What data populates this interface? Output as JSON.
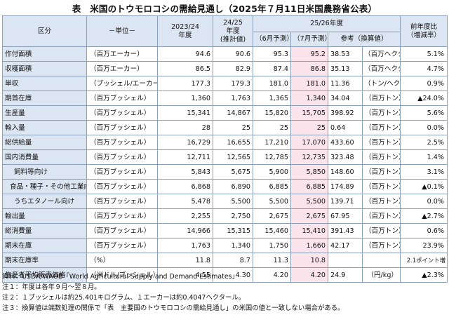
{
  "title": "表　米国のトウモロコシの需給見通し（2025年７月11日米国農務省公表）",
  "header": {
    "category": "区分",
    "unit": "－単位－",
    "col_2324_line1": "2023/24",
    "col_2324_line2": "年度",
    "col_2425_line1": "24/25",
    "col_2425_line2": "年度",
    "col_2425_line3": "(推計値)",
    "col_2526": "25/26年度",
    "forecast_june": "（6月予測）",
    "forecast_july": "（7月予測）",
    "reference": "参考（換算値）",
    "yoy_line1": "前年度比",
    "yoy_line2": "（増減率）"
  },
  "rows": [
    {
      "label": "作付面積",
      "unit": "（百万エーカー）",
      "v2324": "94.6",
      "v2425": "90.6",
      "jun": "95.3",
      "jul": "95.2",
      "ref": "38.53",
      "ref_unit": "（百万ヘクタール）",
      "yoy": "5.1%"
    },
    {
      "label": "収穫面積",
      "unit": "（百万エーカー）",
      "v2324": "86.5",
      "v2425": "82.9",
      "jun": "87.4",
      "jul": "86.8",
      "ref": "35.13",
      "ref_unit": "（百万ヘクタール）",
      "yoy": "4.7%"
    },
    {
      "label": "単収",
      "unit": "（ブッシェル/エーカー）",
      "v2324": "177.3",
      "v2425": "179.3",
      "jun": "181.0",
      "jul": "181.0",
      "ref": "11.36",
      "ref_unit": "（トン/ヘクタール）",
      "yoy": "0.9%"
    },
    {
      "label": "期首在庫",
      "unit": "（百万ブッシェル）",
      "v2324": "1,360",
      "v2425": "1,763",
      "jun": "1,365",
      "jul": "1,340",
      "ref": "34.04",
      "ref_unit": "（百万トン）",
      "yoy": "▲24.0%"
    },
    {
      "label": "生産量",
      "unit": "（百万ブッシェル）",
      "v2324": "15,341",
      "v2425": "14,867",
      "jun": "15,820",
      "jul": "15,705",
      "ref": "398.92",
      "ref_unit": "（百万トン）",
      "yoy": "5.6%"
    },
    {
      "label": "輸入量",
      "unit": "（百万ブッシェル）",
      "v2324": "28",
      "v2425": "25",
      "jun": "25",
      "jul": "25",
      "ref": "0.64",
      "ref_unit": "（百万トン）",
      "yoy": "0.0%"
    },
    {
      "label": "総供給量",
      "unit": "（百万ブッシェル）",
      "v2324": "16,729",
      "v2425": "16,655",
      "jun": "17,210",
      "jul": "17,070",
      "ref": "433.60",
      "ref_unit": "（百万トン）",
      "yoy": "2.5%"
    },
    {
      "label": "国内消費量",
      "unit": "（百万ブッシェル）",
      "v2324": "12,711",
      "v2425": "12,565",
      "jun": "12,785",
      "jul": "12,735",
      "ref": "323.48",
      "ref_unit": "（百万トン）",
      "yoy": "1.4%"
    },
    {
      "label": "飼料等向け",
      "unit": "（百万ブッシェル）",
      "v2324": "5,843",
      "v2425": "5,675",
      "jun": "5,900",
      "jul": "5,850",
      "ref": "148.60",
      "ref_unit": "（百万トン）",
      "yoy": "3.1%"
    },
    {
      "label": "食品・種子・その他工業向け",
      "unit": "（百万ブッシェル）",
      "v2324": "6,868",
      "v2425": "6,890",
      "jun": "6,885",
      "jul": "6,885",
      "ref": "174.89",
      "ref_unit": "（百万トン）",
      "yoy": "▲0.1%"
    },
    {
      "label": "うちエタノール向け",
      "unit": "（百万ブッシェル）",
      "v2324": "5,478",
      "v2425": "5,500",
      "jun": "5,500",
      "jul": "5,500",
      "ref": "139.71",
      "ref_unit": "（百万トン）",
      "yoy": "0.0%"
    },
    {
      "label": "輸出量",
      "unit": "（百万ブッシェル）",
      "v2324": "2,255",
      "v2425": "2,750",
      "jun": "2,675",
      "jul": "2,675",
      "ref": "67.95",
      "ref_unit": "（百万トン）",
      "yoy": "▲2.7%"
    },
    {
      "label": "総消費量",
      "unit": "（百万ブッシェル）",
      "v2324": "14,966",
      "v2425": "15,315",
      "jun": "15,460",
      "jul": "15,410",
      "ref": "391.43",
      "ref_unit": "（百万トン）",
      "yoy": "0.6%"
    },
    {
      "label": "期末在庫",
      "unit": "（百万ブッシェル）",
      "v2324": "1,763",
      "v2425": "1,340",
      "jun": "1,750",
      "jul": "1,660",
      "ref": "42.17",
      "ref_unit": "（百万トン）",
      "yoy": "23.9%"
    },
    {
      "label": "期末在庫率",
      "unit": "（%）",
      "v2324": "11.8",
      "v2425": "8.7",
      "jun": "11.3",
      "jul": "10.8",
      "ref": "",
      "ref_unit": "",
      "yoy": "2.1ポイント増"
    },
    {
      "label": "生産者平均販売価格",
      "unit": "（米ドル/ブッシェル）",
      "v2324": "4.55",
      "v2425": "4.30",
      "jun": "4.20",
      "jul": "4.20",
      "ref": "24.9",
      "ref_unit": "（円/kg）",
      "yoy": "▲2.3%"
    }
  ],
  "notes": [
    "資料：USDA/WAOB「World Agricultural Supply and Demand Estimates」",
    "注１：年度は各年９月～翌８月。",
    "注２：１ブッシェルは約25.401キログラム、１エーカーは約0.4047ヘクタール。",
    "注３：換算値は端数処理の関係で「表　主要国のトウモロコシの需給見通し」の米国の値と一致しない場合がある。"
  ]
}
